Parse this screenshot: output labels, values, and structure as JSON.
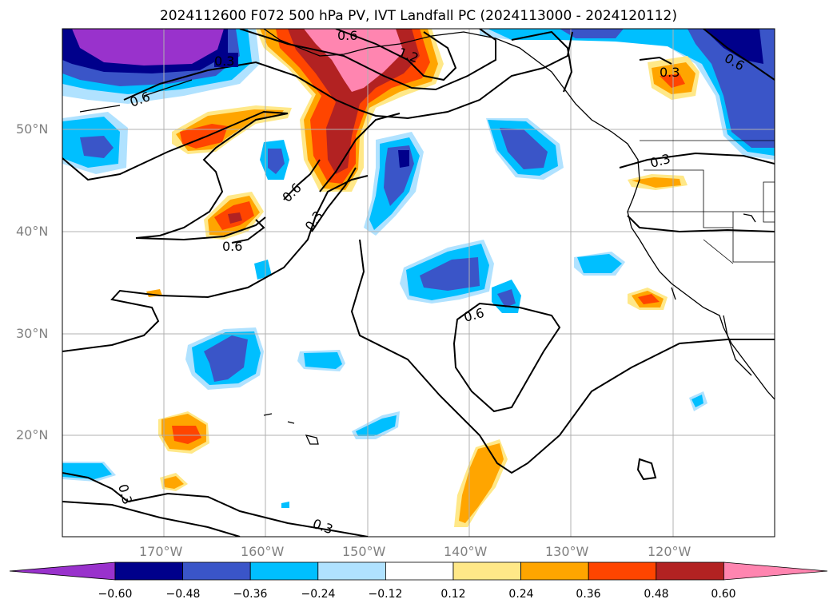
{
  "title": "2024112600 F072 500 hPa PV, IVT Landfall PC (2024113000 - 2024120112)",
  "latitude_labels": [
    "50°N",
    "40°N",
    "30°N",
    "20°N"
  ],
  "longitude_labels": [
    "170°W",
    "160°W",
    "150°W",
    "140°W",
    "130°W",
    "120°W"
  ],
  "colorbar": {
    "ticks": [
      "−0.60",
      "−0.48",
      "−0.36",
      "−0.24",
      "−0.12",
      "0.12",
      "0.24",
      "0.36",
      "0.48",
      "0.60"
    ],
    "colors": [
      "#9932cc",
      "#00008b",
      "#3a55c8",
      "#00bfff",
      "#b0e2ff",
      "#ffffff",
      "#ffe888",
      "#ffa500",
      "#ff4500",
      "#b22222",
      "#ff85b0"
    ]
  },
  "contour_labels": [
    "0.3",
    "0.6",
    "0.6",
    "1.2",
    "0.6",
    "0.3",
    "0.3",
    "0.6",
    "0.6",
    "0.3",
    "0.6",
    "0.3",
    "0.3"
  ],
  "colors": {
    "grid": "#b0b0b0",
    "coast": "#000000",
    "tick_label": "#808080"
  }
}
